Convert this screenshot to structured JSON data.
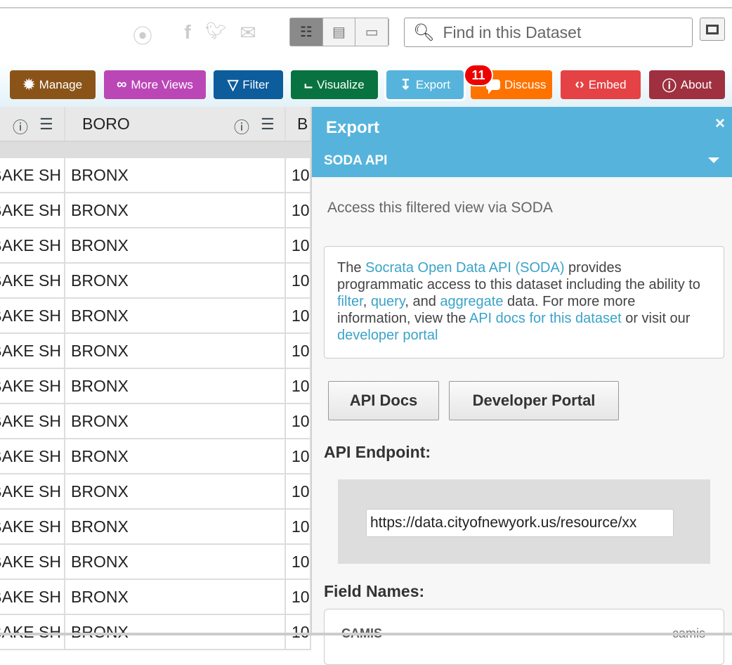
{
  "search": {
    "placeholder": "Find in this Dataset"
  },
  "toolbar": {
    "buttons": [
      {
        "label": "Manage",
        "icon": "gear-icon",
        "color": "#8a5419"
      },
      {
        "label": "More Views",
        "icon": "binoculars-icon",
        "color": "#bb47b7"
      },
      {
        "label": "Filter",
        "icon": "funnel-icon",
        "color": "#0d5c9c"
      },
      {
        "label": "Visualize",
        "icon": "chart-icon",
        "color": "#087340"
      },
      {
        "label": "Export",
        "icon": "export-icon",
        "color": "#56b4dc"
      },
      {
        "label": "Discuss",
        "icon": "speech-bubble-icon",
        "color": "#fe7300"
      },
      {
        "label": "Embed",
        "icon": "code-brackets-icon",
        "color": "#e44244"
      },
      {
        "label": "About",
        "icon": "info-icon",
        "color": "#9e3040"
      }
    ],
    "discuss_badge": "11"
  },
  "grid": {
    "headers": [
      "",
      "BORO",
      "B"
    ],
    "rows": [
      [
        "BAKE SH",
        "BRONX",
        "10"
      ],
      [
        "BAKE SH",
        "BRONX",
        "10"
      ],
      [
        "BAKE SH",
        "BRONX",
        "10"
      ],
      [
        "BAKE SH",
        "BRONX",
        "10"
      ],
      [
        "BAKE SH",
        "BRONX",
        "10"
      ],
      [
        "BAKE SH",
        "BRONX",
        "10"
      ],
      [
        "BAKE SH",
        "BRONX",
        "10"
      ],
      [
        "BAKE SH",
        "BRONX",
        "10"
      ],
      [
        "BAKE SH",
        "BRONX",
        "10"
      ],
      [
        "BAKE SH",
        "BRONX",
        "10"
      ],
      [
        "BAKE SH",
        "BRONX",
        "10"
      ],
      [
        "BAKE SH",
        "BRONX",
        "10"
      ],
      [
        "BAKE SH",
        "BRONX",
        "10"
      ],
      [
        "BAKE SH",
        "BRONX",
        "10"
      ]
    ]
  },
  "panel": {
    "title": "Export",
    "close": "×",
    "section": "SODA API",
    "description": "Access this filtered view via SODA",
    "info": {
      "t1": "The ",
      "l1": "Socrata Open Data API (SODA)",
      "t2": " provides programmatic access to this dataset including the ability to ",
      "l2": "filter",
      "t3": ", ",
      "l3": "query",
      "t4": ", and ",
      "l4": "aggregate",
      "t5": " data. For more more information, view the ",
      "l5": "API docs for this dataset",
      "t6": " or visit our ",
      "l6": "developer portal"
    },
    "api_docs_button": "API Docs",
    "developer_portal_button": "Developer Portal",
    "endpoint_label": "API Endpoint:",
    "endpoint_value": "https://data.cityofnewyork.us/resource/xx",
    "field_names_label": "Field Names:",
    "fields": [
      {
        "name": "CAMIS",
        "api": "camis"
      }
    ]
  }
}
